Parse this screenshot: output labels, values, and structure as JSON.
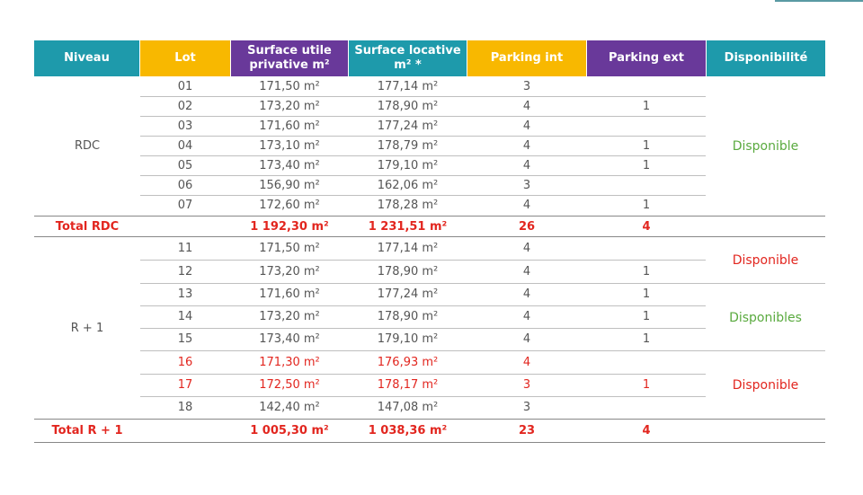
{
  "headers": [
    "Niveau",
    "Lot",
    "Surface utile privative m²",
    "Surface locative m² *",
    "Parking int",
    "Parking ext",
    "Disponibilité"
  ],
  "header_colors": {
    "teal": "#1e9aab",
    "yellow": "#f8b800",
    "purple": "#69399a"
  },
  "status_colors": {
    "available_green": "#5aaa3f",
    "available_red": "#e2261f"
  },
  "rdc": {
    "niveau": "RDC",
    "rows": [
      {
        "lot": "01",
        "privative": "171,50 m²",
        "locative": "177,14 m²",
        "pint": "3",
        "pext": ""
      },
      {
        "lot": "02",
        "privative": "173,20 m²",
        "locative": "178,90 m²",
        "pint": "4",
        "pext": "1"
      },
      {
        "lot": "03",
        "privative": "171,60 m²",
        "locative": "177,24 m²",
        "pint": "4",
        "pext": ""
      },
      {
        "lot": "04",
        "privative": "173,10 m²",
        "locative": "178,79 m²",
        "pint": "4",
        "pext": "1"
      },
      {
        "lot": "05",
        "privative": "173,40 m²",
        "locative": "179,10 m²",
        "pint": "4",
        "pext": "1"
      },
      {
        "lot": "06",
        "privative": "156,90 m²",
        "locative": "162,06 m²",
        "pint": "3",
        "pext": ""
      },
      {
        "lot": "07",
        "privative": "172,60 m²",
        "locative": "178,28 m²",
        "pint": "4",
        "pext": "1"
      }
    ],
    "dispo": "Disponible",
    "total": {
      "label": "Total RDC",
      "privative": "1 192,30 m²",
      "locative": "1 231,51 m²",
      "pint": "26",
      "pext": "4"
    }
  },
  "r1": {
    "niveau": "R + 1",
    "rows": [
      {
        "lot": "11",
        "privative": "171,50 m²",
        "locative": "177,14 m²",
        "pint": "4",
        "pext": ""
      },
      {
        "lot": "12",
        "privative": "173,20 m²",
        "locative": "178,90 m²",
        "pint": "4",
        "pext": "1"
      },
      {
        "lot": "13",
        "privative": "171,60 m²",
        "locative": "177,24 m²",
        "pint": "4",
        "pext": "1"
      },
      {
        "lot": "14",
        "privative": "173,20 m²",
        "locative": "178,90 m²",
        "pint": "4",
        "pext": "1"
      },
      {
        "lot": "15",
        "privative": "173,40 m²",
        "locative": "179,10 m²",
        "pint": "4",
        "pext": "1"
      },
      {
        "lot": "16",
        "privative": "171,30 m²",
        "locative": "176,93 m²",
        "pint": "4",
        "pext": ""
      },
      {
        "lot": "17",
        "privative": "172,50 m²",
        "locative": "178,17 m²",
        "pint": "3",
        "pext": "1"
      },
      {
        "lot": "18",
        "privative": "142,40 m²",
        "locative": "147,08 m²",
        "pint": "3",
        "pext": ""
      }
    ],
    "dispo_groups": [
      "Disponible",
      "Disponibles",
      "Disponible"
    ],
    "total": {
      "label": "Total R + 1",
      "privative": "1 005,30 m²",
      "locative": "1 038,36 m²",
      "pint": "23",
      "pext": "4"
    }
  }
}
